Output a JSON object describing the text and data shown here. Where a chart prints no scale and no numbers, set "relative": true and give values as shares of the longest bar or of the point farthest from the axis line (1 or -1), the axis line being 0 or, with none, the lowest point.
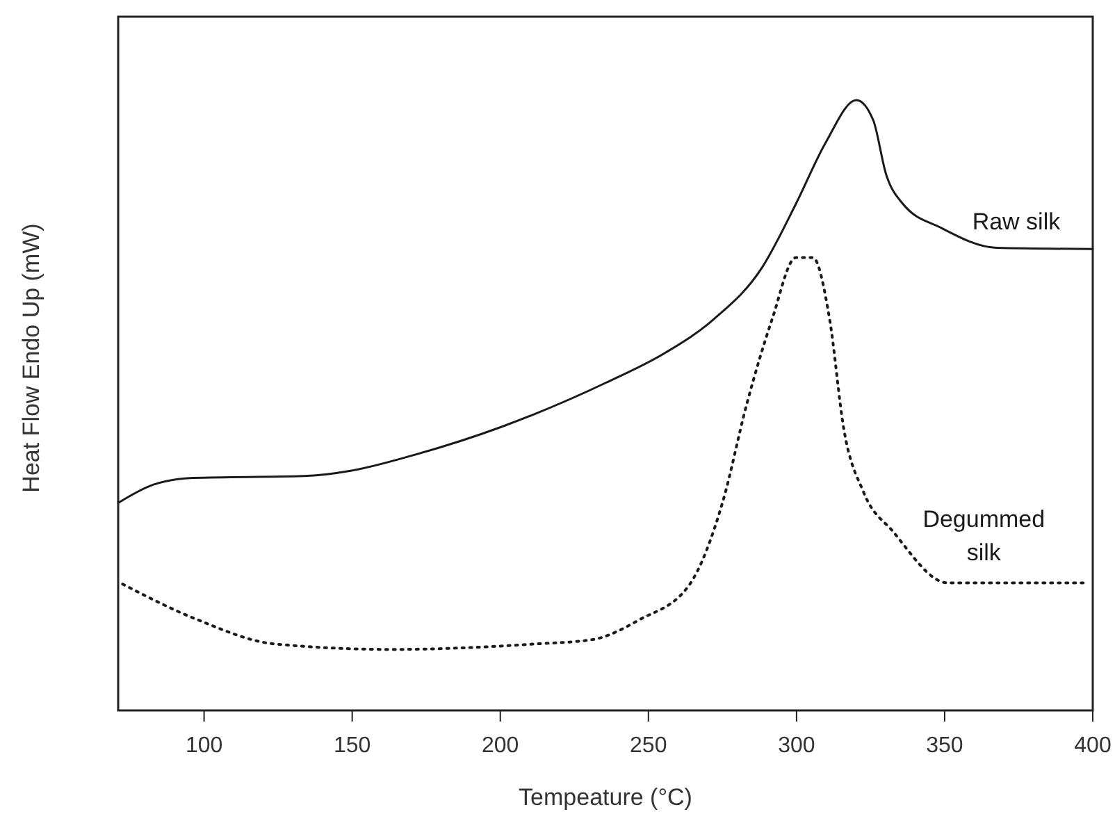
{
  "chart_data": {
    "type": "line",
    "relative": true,
    "xlabel": "Tempeature (°C)",
    "ylabel": "Heat Flow Endo Up (mW)",
    "xlim": [
      71,
      400
    ],
    "xticks": [
      100,
      150,
      200,
      250,
      300,
      350,
      400
    ],
    "legend": false,
    "marker": "none",
    "series": [
      {
        "name": "Raw silk",
        "color": "#1a1a1a",
        "line_style": "solid",
        "x": [
          71,
          82.9,
          96.2,
          133.7,
          149.8,
          171.2,
          200.6,
          235.7,
          255.7,
          271.8,
          288.4,
          299.8,
          309.8,
          320.2,
          325.9,
          330.2,
          335.9,
          348.7,
          367.7,
          400
        ],
        "values": [
          0.34,
          0.37,
          0.381,
          0.384,
          0.393,
          0.419,
          0.465,
          0.537,
          0.586,
          0.64,
          0.726,
          0.83,
          0.93,
          1,
          0.967,
          0.879,
          0.83,
          0.791,
          0.758,
          0.756
        ]
      },
      {
        "name": "Degummed silk",
        "color": "#1a1a1a",
        "line_style": "dotted",
        "x": [
          72.5,
          97.6,
          123.7,
          163.1,
          212,
          231,
          247.1,
          263.7,
          275.1,
          283.2,
          291.7,
          299.8,
          305.5,
          311.2,
          315.9,
          322.6,
          332.6,
          351.1,
          398.5
        ],
        "values": [
          0.207,
          0.149,
          0.109,
          0.1,
          0.109,
          0.116,
          0.149,
          0.205,
          0.342,
          0.502,
          0.64,
          0.742,
          0.742,
          0.64,
          0.463,
          0.358,
          0.293,
          0.209,
          0.209
        ]
      }
    ]
  }
}
